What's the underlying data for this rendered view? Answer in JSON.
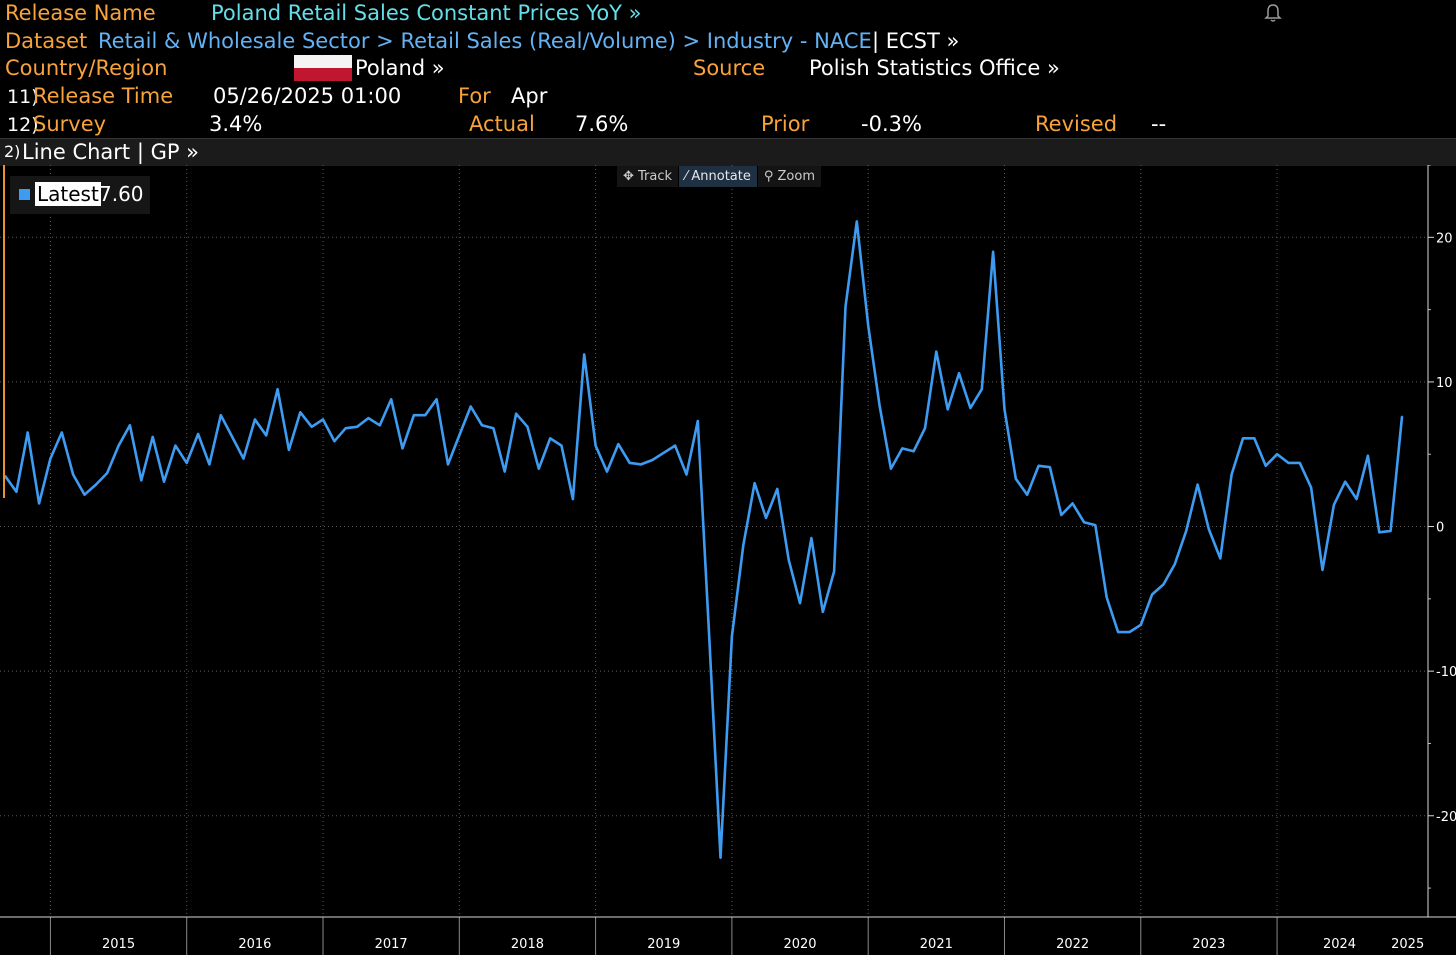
{
  "header": {
    "release_name_label": "Release Name",
    "release_name_value": "Poland Retail Sales Constant Prices YoY »",
    "dataset_label": "Dataset",
    "dataset_path": "Retail & Wholesale Sector > Retail Sales (Real/Volume) > Industry - NACE",
    "dataset_suffix": "| ECST »",
    "country_label": "Country/Region",
    "country_value": "Poland »",
    "source_label": "Source",
    "source_value": "Polish Statistics Office »",
    "release_time_num": "11)",
    "release_time_label": "Release Time",
    "release_time_value": "05/26/2025 01:00",
    "for_label": "For",
    "for_value": "Apr",
    "survey_num": "12)",
    "survey_label": "Survey",
    "survey_value": "3.4%",
    "actual_label": "Actual",
    "actual_value": "7.6%",
    "prior_label": "Prior",
    "prior_value": "-0.3%",
    "revised_label": "Revised",
    "revised_value": "--"
  },
  "chart_bar": {
    "num": "2)",
    "title": "Line Chart | GP »"
  },
  "toolbar": {
    "track": "Track",
    "annotate": "Annotate",
    "zoom": "Zoom"
  },
  "legend": {
    "label": "Latest",
    "value": "7.60"
  },
  "colors": {
    "line": "#3d9cf2",
    "accent_orange": "#f7a23b",
    "accent_cyan": "#62dfea",
    "accent_blue": "#63b2f5"
  },
  "chart_data": {
    "type": "line",
    "title": "",
    "xlabel": "",
    "ylabel": "",
    "ylim": [
      -27,
      25
    ],
    "yticks": [
      20,
      10,
      0,
      -10,
      -20
    ],
    "ytick_labels": [
      "20",
      "10",
      "0",
      "-10",
      "-20"
    ],
    "x_tick_labels": [
      "2015",
      "2016",
      "2017",
      "2018",
      "2019",
      "2020",
      "2021",
      "2022",
      "2023",
      "2024",
      "2025"
    ],
    "x_start": "2014-09",
    "grid": true,
    "legend_position": "top-left",
    "series": [
      {
        "name": "Latest",
        "values": [
          3.5,
          2.4,
          6.5,
          1.6,
          4.7,
          6.5,
          3.6,
          2.2,
          2.9,
          3.7,
          5.6,
          7.0,
          3.2,
          6.2,
          3.1,
          5.6,
          4.4,
          6.4,
          4.3,
          7.7,
          6.2,
          4.7,
          7.4,
          6.3,
          9.5,
          5.3,
          7.9,
          6.9,
          7.4,
          5.9,
          6.8,
          6.9,
          7.5,
          7.0,
          8.8,
          5.4,
          7.7,
          7.7,
          8.8,
          4.3,
          6.3,
          8.3,
          7.0,
          6.8,
          3.8,
          7.8,
          6.9,
          4.0,
          6.1,
          5.6,
          1.9,
          11.9,
          5.6,
          3.8,
          5.7,
          4.4,
          4.3,
          4.6,
          5.1,
          5.6,
          3.6,
          7.3,
          -7.6,
          -22.9,
          -7.6,
          -1.3,
          3.0,
          0.6,
          2.6,
          -2.3,
          -5.3,
          -0.8,
          -5.9,
          -3.1,
          15.2,
          21.1,
          13.9,
          8.4,
          4.0,
          5.4,
          5.2,
          6.8,
          12.1,
          8.1,
          10.6,
          8.2,
          9.5,
          19.0,
          8.1,
          3.3,
          2.2,
          4.2,
          4.1,
          0.8,
          1.6,
          0.3,
          0.1,
          -4.9,
          -7.3,
          -7.3,
          -6.8,
          -4.7,
          -4.0,
          -2.6,
          -0.3,
          2.9,
          -0.2,
          -2.2,
          3.6,
          6.1,
          6.1,
          4.2,
          5.0,
          4.4,
          4.4,
          2.7,
          -3.0,
          1.5,
          3.1,
          1.9,
          4.9,
          -0.4,
          -0.3,
          7.6
        ]
      }
    ]
  }
}
